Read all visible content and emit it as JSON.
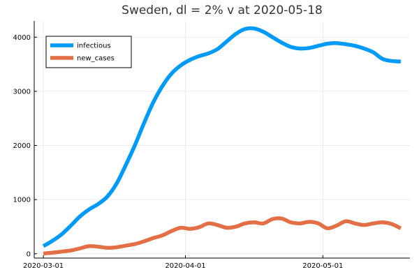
{
  "chart_data": {
    "type": "line",
    "title": "Sweden,  dl = 2% v at 2020-05-18",
    "xlabel": "",
    "ylabel": "",
    "x_type": "date",
    "xlim": [
      "2020-02-28",
      "2020-05-20"
    ],
    "ylim": [
      -80,
      4300
    ],
    "x_ticks": [
      "2020-03-01",
      "2020-04-01",
      "2020-05-01"
    ],
    "y_ticks": [
      0,
      1000,
      2000,
      3000,
      4000
    ],
    "grid": true,
    "legend_position": "top-left",
    "series": [
      {
        "name": "infectious",
        "color": "#009af9",
        "x": [
          "2020-03-01",
          "2020-03-03",
          "2020-03-05",
          "2020-03-07",
          "2020-03-09",
          "2020-03-11",
          "2020-03-13",
          "2020-03-15",
          "2020-03-17",
          "2020-03-19",
          "2020-03-21",
          "2020-03-23",
          "2020-03-25",
          "2020-03-27",
          "2020-03-29",
          "2020-03-31",
          "2020-04-02",
          "2020-04-04",
          "2020-04-06",
          "2020-04-08",
          "2020-04-10",
          "2020-04-12",
          "2020-04-14",
          "2020-04-16",
          "2020-04-18",
          "2020-04-20",
          "2020-04-22",
          "2020-04-24",
          "2020-04-26",
          "2020-04-28",
          "2020-04-30",
          "2020-05-02",
          "2020-05-04",
          "2020-05-06",
          "2020-05-08",
          "2020-05-10",
          "2020-05-12",
          "2020-05-14",
          "2020-05-16",
          "2020-05-18"
        ],
        "values": [
          140,
          240,
          360,
          520,
          690,
          820,
          920,
          1060,
          1300,
          1640,
          2010,
          2420,
          2800,
          3100,
          3330,
          3480,
          3580,
          3650,
          3700,
          3780,
          3920,
          4060,
          4150,
          4160,
          4100,
          4000,
          3900,
          3820,
          3790,
          3800,
          3840,
          3880,
          3890,
          3870,
          3840,
          3790,
          3720,
          3600,
          3560,
          3550
        ]
      },
      {
        "name": "new_cases",
        "color": "#e26f46",
        "x": [
          "2020-03-01",
          "2020-03-03",
          "2020-03-05",
          "2020-03-07",
          "2020-03-09",
          "2020-03-11",
          "2020-03-13",
          "2020-03-15",
          "2020-03-17",
          "2020-03-19",
          "2020-03-21",
          "2020-03-23",
          "2020-03-25",
          "2020-03-27",
          "2020-03-29",
          "2020-03-31",
          "2020-04-02",
          "2020-04-04",
          "2020-04-06",
          "2020-04-08",
          "2020-04-10",
          "2020-04-12",
          "2020-04-14",
          "2020-04-16",
          "2020-04-18",
          "2020-04-20",
          "2020-04-22",
          "2020-04-24",
          "2020-04-26",
          "2020-04-28",
          "2020-04-30",
          "2020-05-02",
          "2020-05-04",
          "2020-05-06",
          "2020-05-08",
          "2020-05-10",
          "2020-05-12",
          "2020-05-14",
          "2020-05-16",
          "2020-05-18"
        ],
        "values": [
          5,
          20,
          40,
          60,
          100,
          140,
          130,
          110,
          120,
          150,
          180,
          230,
          290,
          340,
          420,
          480,
          460,
          490,
          560,
          530,
          480,
          500,
          560,
          580,
          560,
          640,
          650,
          580,
          560,
          590,
          560,
          470,
          520,
          600,
          560,
          530,
          560,
          580,
          550,
          470
        ]
      }
    ]
  }
}
